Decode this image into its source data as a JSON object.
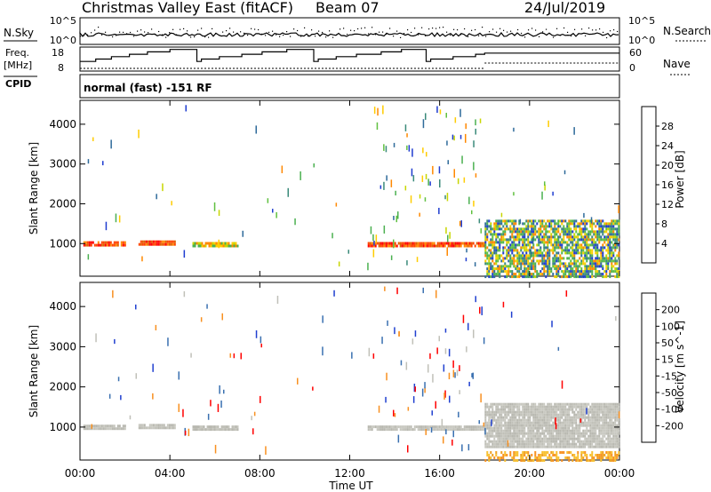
{
  "header": {
    "station": "Christmas Valley East (fitACF)",
    "beam": "Beam 07",
    "date": "24/Jul/2019"
  },
  "top_panels": {
    "nsky_label": "N.Sky",
    "nsearch_label": "N.Search",
    "nsky_ticks": [
      "10^5",
      "10^0"
    ],
    "nsearch_ticks": [
      "10^5",
      "10^0"
    ],
    "freq_label": "Freq.",
    "freq_unit": "[MHz]",
    "freq_ticks": [
      "18",
      "8"
    ],
    "nave_label": "Nave",
    "nave_ticks": [
      "60",
      "0"
    ],
    "cpid_label": "CPID",
    "cpid_text": "normal (fast) -151 RF"
  },
  "axes": {
    "ylabel": "Slant Range [km]",
    "xlabel": "Time UT",
    "y_ticks": [
      "4000",
      "3000",
      "2000",
      "1000"
    ],
    "x_ticks": [
      "00:00",
      "04:00",
      "08:00",
      "12:00",
      "16:00",
      "20:00",
      "00:00"
    ]
  },
  "power_scale": {
    "label": "Power [dB]",
    "ticks": [
      "28",
      "24",
      "20",
      "16",
      "12",
      "8",
      "4"
    ],
    "colors": [
      "#ff0000",
      "#ff4400",
      "#ff8800",
      "#ffcc00",
      "#c8d600",
      "#4bb050",
      "#3a8a7a",
      "#2e6a9a",
      "#1e3cd0",
      "#0000ff"
    ]
  },
  "velocity_scale": {
    "label": "Velocity [m s^-1]",
    "ticks": [
      "200",
      "100",
      "50",
      "15",
      "-15",
      "-50",
      "-100",
      "-200"
    ],
    "colors": [
      "#2040d0",
      "#3a70b0",
      "#2e8a6a",
      "#60c040",
      "#c0c0b8",
      "#c0c0b8",
      "#f8c030",
      "#f89020",
      "#f05010",
      "#ff0000"
    ]
  },
  "chart_data": [
    {
      "type": "heatmap",
      "panel": "power",
      "xlim": [
        0,
        24
      ],
      "ylim": [
        180,
        4600
      ],
      "bands": [
        {
          "t0": 0.15,
          "t1": 2.0,
          "r0": 940,
          "r1": 1060,
          "level": "high"
        },
        {
          "t0": 2.6,
          "t1": 4.2,
          "r0": 960,
          "r1": 1080,
          "level": "high"
        },
        {
          "t0": 5.0,
          "t1": 7.0,
          "r0": 960,
          "r1": 1040,
          "level": "mid"
        },
        {
          "t0": 12.8,
          "t1": 18.0,
          "r0": 960,
          "r1": 1040,
          "level": "high"
        },
        {
          "t0": 18.0,
          "t1": 24.0,
          "r0": 400,
          "r1": 1600,
          "level": "mixed"
        },
        {
          "t0": 18.0,
          "t1": 24.0,
          "r0": 180,
          "r1": 400,
          "level": "mixed"
        }
      ]
    },
    {
      "type": "heatmap",
      "panel": "velocity",
      "xlim": [
        0,
        24
      ],
      "ylim": [
        180,
        4600
      ],
      "bands": [
        {
          "t0": 0.15,
          "t1": 2.0,
          "r0": 960,
          "r1": 1060,
          "level": "zero"
        },
        {
          "t0": 2.6,
          "t1": 4.2,
          "r0": 960,
          "r1": 1080,
          "level": "zero"
        },
        {
          "t0": 5.0,
          "t1": 7.0,
          "r0": 960,
          "r1": 1040,
          "level": "zero"
        },
        {
          "t0": 12.8,
          "t1": 18.0,
          "r0": 960,
          "r1": 1040,
          "level": "zero"
        },
        {
          "t0": 18.0,
          "t1": 24.0,
          "r0": 500,
          "r1": 1600,
          "level": "zero"
        },
        {
          "t0": 18.0,
          "t1": 24.0,
          "r0": 180,
          "r1": 400,
          "level": "negative"
        }
      ]
    }
  ],
  "freq_steps": [
    {
      "t0": 0.0,
      "t1": 0.7,
      "f": 12
    },
    {
      "t0": 0.7,
      "t1": 1.4,
      "f": 13
    },
    {
      "t0": 1.4,
      "t1": 2.2,
      "f": 14
    },
    {
      "t0": 2.2,
      "t1": 3.0,
      "f": 15
    },
    {
      "t0": 3.0,
      "t1": 4.0,
      "f": 16
    },
    {
      "t0": 4.0,
      "t1": 5.2,
      "f": 17
    },
    {
      "t0": 5.2,
      "t1": 5.4,
      "f": 12
    },
    {
      "t0": 5.4,
      "t1": 6.2,
      "f": 13
    },
    {
      "t0": 6.2,
      "t1": 7.2,
      "f": 14
    },
    {
      "t0": 7.2,
      "t1": 8.1,
      "f": 15
    },
    {
      "t0": 8.1,
      "t1": 9.2,
      "f": 16
    },
    {
      "t0": 9.2,
      "t1": 10.4,
      "f": 17
    },
    {
      "t0": 10.4,
      "t1": 10.6,
      "f": 12
    },
    {
      "t0": 10.6,
      "t1": 11.4,
      "f": 13
    },
    {
      "t0": 11.4,
      "t1": 12.3,
      "f": 14
    },
    {
      "t0": 12.3,
      "t1": 13.4,
      "f": 15
    },
    {
      "t0": 13.4,
      "t1": 14.3,
      "f": 16
    },
    {
      "t0": 14.3,
      "t1": 15.4,
      "f": 17
    },
    {
      "t0": 15.4,
      "t1": 15.6,
      "f": 12
    },
    {
      "t0": 15.6,
      "t1": 16.6,
      "f": 13
    },
    {
      "t0": 16.6,
      "t1": 17.6,
      "f": 14
    },
    {
      "t0": 17.6,
      "t1": 18.0,
      "f": 15
    },
    {
      "t0": 18.0,
      "t1": 24.0,
      "f": 15.5
    }
  ]
}
